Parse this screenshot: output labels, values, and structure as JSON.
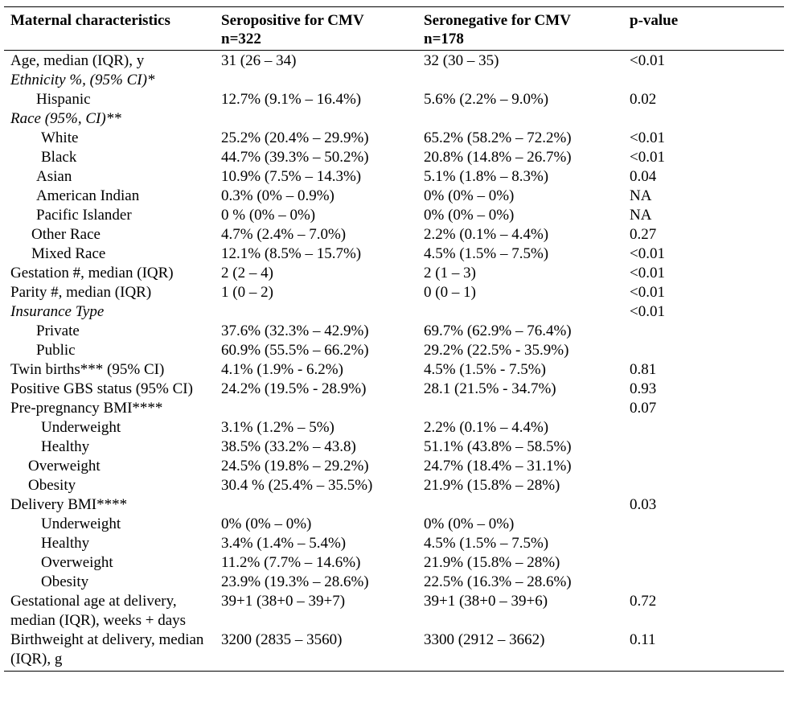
{
  "table": {
    "headers": {
      "col1": "Maternal characteristics",
      "col2_line1": "Seropositive for CMV",
      "col2_line2": "n=322",
      "col3_line1": "Seronegative for CMV",
      "col3_line2": "n=178",
      "col4": "p-value"
    },
    "rows": [
      {
        "label": "Age, median (IQR), y",
        "pos": "31 (26 – 34)",
        "neg": "32 (30 – 35)",
        "p": "<0.01",
        "style": "",
        "indent": ""
      },
      {
        "label": "Ethnicity %, (95% CI)*",
        "pos": "",
        "neg": "",
        "p": "",
        "style": "italic",
        "indent": ""
      },
      {
        "label": "Hispanic",
        "pos": "12.7% (9.1% – 16.4%)",
        "neg": "5.6% (2.2% – 9.0%)",
        "p": "0.02",
        "style": "",
        "indent": "ind1"
      },
      {
        "label": "Race (95%, CI)**",
        "pos": "",
        "neg": "",
        "p": "",
        "style": "italic",
        "indent": ""
      },
      {
        "label": "White",
        "pos": "25.2% (20.4% – 29.9%)",
        "neg": "65.2% (58.2% – 72.2%)",
        "p": "<0.01",
        "style": "",
        "indent": "ind2"
      },
      {
        "label": "Black",
        "pos": "44.7% (39.3% – 50.2%)",
        "neg": "20.8% (14.8% – 26.7%)",
        "p": "<0.01",
        "style": "",
        "indent": "ind2"
      },
      {
        "label": "Asian",
        "pos": "10.9% (7.5% – 14.3%)",
        "neg": "5.1% (1.8% – 8.3%)",
        "p": "0.04",
        "style": "",
        "indent": "ind1"
      },
      {
        "label": "American Indian",
        "pos": "0.3% (0% – 0.9%)",
        "neg": "0% (0% – 0%)",
        "p": "NA",
        "style": "",
        "indent": "ind1"
      },
      {
        "label": "Pacific Islander",
        "pos": "0 % (0% – 0%)",
        "neg": "0% (0% – 0%)",
        "p": "NA",
        "style": "",
        "indent": "ind1"
      },
      {
        "label": "Other Race",
        "pos": "4.7% (2.4% – 7.0%)",
        "neg": "2.2% (0.1% – 4.4%)",
        "p": "0.27",
        "style": "",
        "indent": "ind1b"
      },
      {
        "label": "Mixed Race",
        "pos": "12.1% (8.5% – 15.7%)",
        "neg": "4.5% (1.5% – 7.5%)",
        "p": "<0.01",
        "style": "",
        "indent": "ind1b"
      },
      {
        "label": "Gestation #, median (IQR)",
        "pos": "2 (2 – 4)",
        "neg": "2 (1 – 3)",
        "p": "<0.01",
        "style": "",
        "indent": ""
      },
      {
        "label": "Parity #, median (IQR)",
        "pos": "1 (0 – 2)",
        "neg": "0 (0 – 1)",
        "p": "<0.01",
        "style": "",
        "indent": ""
      },
      {
        "label": "Insurance Type",
        "pos": "",
        "neg": "",
        "p": "<0.01",
        "style": "italic",
        "indent": ""
      },
      {
        "label": "Private",
        "pos": "37.6% (32.3% – 42.9%)",
        "neg": "69.7% (62.9% – 76.4%)",
        "p": "",
        "style": "",
        "indent": "ind1"
      },
      {
        "label": "Public",
        "pos": "60.9% (55.5% – 66.2%)",
        "neg": "29.2% (22.5% - 35.9%)",
        "p": "",
        "style": "",
        "indent": "ind1"
      },
      {
        "label": "Twin births*** (95% CI)",
        "pos": "4.1% (1.9% - 6.2%)",
        "neg": "4.5% (1.5% - 7.5%)",
        "p": "0.81",
        "style": "",
        "indent": ""
      },
      {
        "label": "Positive GBS status (95% CI)",
        "pos": "24.2% (19.5% - 28.9%)",
        "neg": "28.1 (21.5% - 34.7%)",
        "p": "0.93",
        "style": "wrap",
        "indent": ""
      },
      {
        "label": "Pre-pregnancy BMI****",
        "pos": "",
        "neg": "",
        "p": "0.07",
        "style": "",
        "indent": ""
      },
      {
        "label": "Underweight",
        "pos": "3.1% (1.2% – 5%)",
        "neg": "2.2% (0.1% – 4.4%)",
        "p": "",
        "style": "",
        "indent": "ind2"
      },
      {
        "label": "Healthy",
        "pos": "38.5% (33.2% – 43.8)",
        "neg": "51.1% (43.8% – 58.5%)",
        "p": "",
        "style": "",
        "indent": "ind2"
      },
      {
        "label": "Overweight",
        "pos": "24.5% (19.8% – 29.2%)",
        "neg": "24.7% (18.4% – 31.1%)",
        "p": "",
        "style": "",
        "indent": "ind3"
      },
      {
        "label": "Obesity",
        "pos": "30.4 % (25.4% – 35.5%)",
        "neg": "21.9% (15.8% – 28%)",
        "p": "",
        "style": "",
        "indent": "ind3"
      },
      {
        "label": "Delivery BMI****",
        "pos": "",
        "neg": "",
        "p": "0.03",
        "style": "",
        "indent": ""
      },
      {
        "label": "Underweight",
        "pos": "0% (0% – 0%)",
        "neg": "0% (0% – 0%)",
        "p": "",
        "style": "",
        "indent": "ind2"
      },
      {
        "label": "Healthy",
        "pos": "3.4% (1.4% – 5.4%)",
        "neg": "4.5% (1.5% – 7.5%)",
        "p": "",
        "style": "",
        "indent": "ind2"
      },
      {
        "label": "Overweight",
        "pos": "11.2% (7.7% – 14.6%)",
        "neg": "21.9% (15.8% – 28%)",
        "p": "",
        "style": "",
        "indent": "ind2"
      },
      {
        "label": "Obesity",
        "pos": "23.9% (19.3% – 28.6%)",
        "neg": "22.5% (16.3% – 28.6%)",
        "p": "",
        "style": "",
        "indent": "ind2"
      },
      {
        "label": "Gestational age at delivery, median (IQR), weeks + days",
        "pos": "39+1 (38+0 – 39+7)",
        "neg": "39+1 (38+0 – 39+6)",
        "p": "0.72",
        "style": "wrap",
        "indent": ""
      },
      {
        "label": "Birthweight at delivery, median (IQR), g",
        "pos": "3200 (2835 – 3560)",
        "neg": "3300 (2912 – 3662)",
        "p": "0.11",
        "style": "wrap",
        "indent": ""
      }
    ]
  }
}
